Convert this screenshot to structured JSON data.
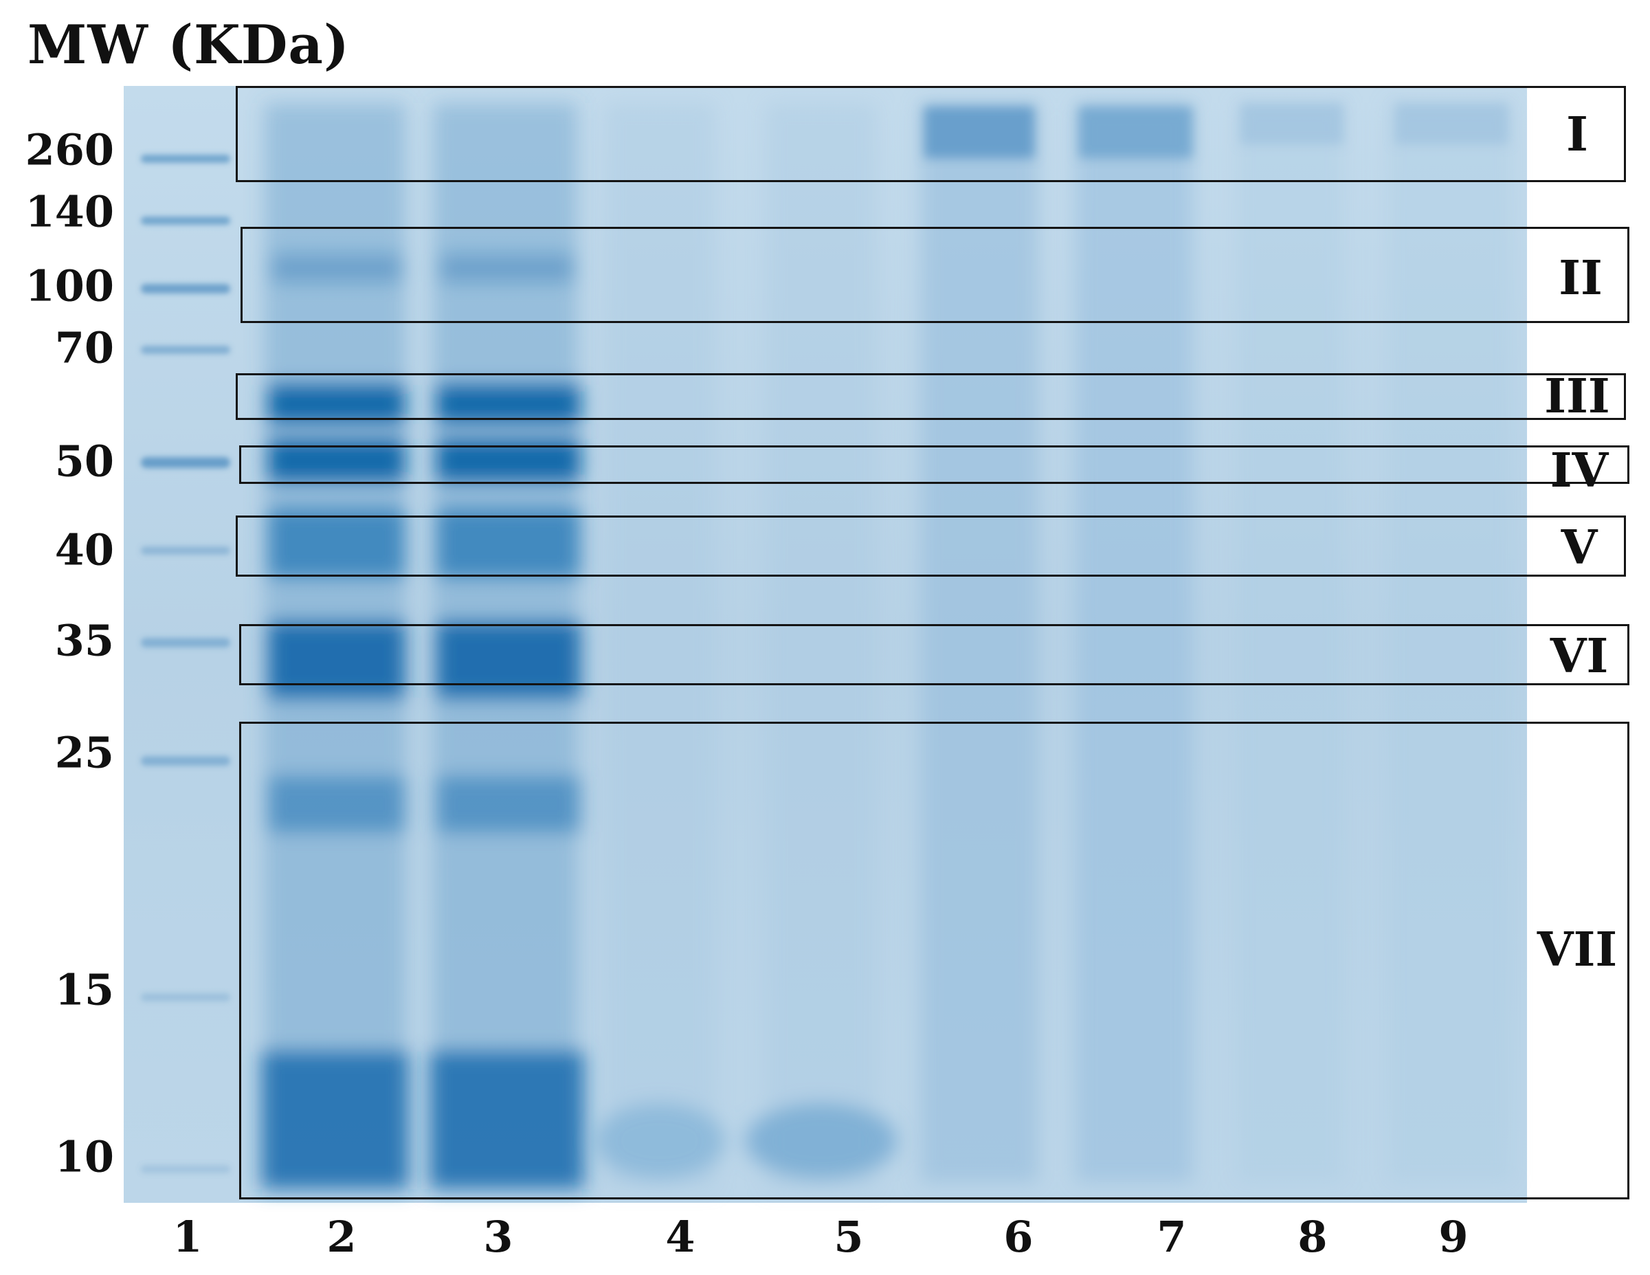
{
  "figure": {
    "y_axis_title": "MW (KDa)",
    "mw_markers": [
      "260",
      "140",
      "100",
      "70",
      "50",
      "40",
      "35",
      "25",
      "15",
      "10"
    ],
    "lane_numbers": [
      "1",
      "2",
      "3",
      "4",
      "5",
      "6",
      "7",
      "8",
      "9"
    ],
    "region_labels": [
      "I",
      "II",
      "III",
      "IV",
      "V",
      "VI",
      "VII"
    ],
    "colors": {
      "gel_background": "#b9d4e8",
      "stain": "#1f6fb0",
      "box_outline": "#141414",
      "text": "#111111"
    }
  }
}
